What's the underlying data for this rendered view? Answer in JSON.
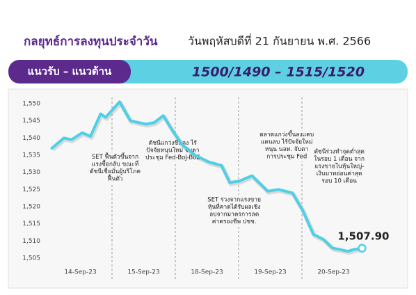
{
  "header": {
    "title": "กลยุทธ์การลงทุนประจำวัน",
    "date": "วันพฤหัสบดีที่ 21 กันยายน พ.ศ. 2566",
    "band_label": "แนวรับ – แนวต้าน",
    "levels": "1500/1490 – 1515/1520"
  },
  "chart_data": {
    "type": "line",
    "color": "#4dd0e6",
    "x": [
      0.5,
      2.4,
      3.6,
      5.3,
      6.6,
      8.2,
      9,
      11.2,
      12.9,
      15.4,
      16.7,
      18.1,
      19.6,
      21.1,
      23.1,
      25.3,
      27.3,
      28.6,
      30.2,
      32.1,
      34.6,
      36.3,
      38.5,
      40.1,
      41.8,
      43.4,
      44.8,
      47.3,
      48.1,
      49.5
    ],
    "values": [
      1537,
      1540,
      1539.5,
      1541.5,
      1540.5,
      1547,
      1546,
      1550.5,
      1545,
      1544,
      1544.5,
      1546.5,
      1542,
      1538,
      1535,
      1533,
      1532,
      1527,
      1527.5,
      1529,
      1524.5,
      1525,
      1524,
      1519,
      1512,
      1510.5,
      1508,
      1507,
      1507.5,
      1507.9
    ],
    "value_labels": [
      null,
      null,
      null,
      null,
      null,
      null,
      null,
      null,
      null,
      null,
      null,
      null,
      null,
      null,
      null,
      null,
      null,
      null,
      null,
      null,
      null,
      null,
      null,
      null,
      null,
      null,
      null,
      null,
      null,
      "1,507.90"
    ],
    "xlim": [
      0,
      50
    ],
    "xticks": [
      {
        "value": 5,
        "label": "14-Sep-23"
      },
      {
        "value": 15,
        "label": "15-Sep-23"
      },
      {
        "value": 25,
        "label": "18-Sep-23"
      },
      {
        "value": 35,
        "label": "19-Sep-23"
      },
      {
        "value": 45,
        "label": "20-Sep-23"
      }
    ],
    "xgrid": [
      10,
      20,
      30,
      40
    ],
    "ylim": [
      1503,
      1552
    ],
    "yticks": [
      {
        "value": 1505,
        "label": "1,505"
      },
      {
        "value": 1510,
        "label": "1,510"
      },
      {
        "value": 1515,
        "label": "1,515"
      },
      {
        "value": 1520,
        "label": "1,520"
      },
      {
        "value": 1525,
        "label": "1,525"
      },
      {
        "value": 1530,
        "label": "1,530"
      },
      {
        "value": 1535,
        "label": "1,535"
      },
      {
        "value": 1540,
        "label": "1,540"
      },
      {
        "value": 1545,
        "label": "1,545"
      },
      {
        "value": 1550,
        "label": "1,550"
      }
    ],
    "annotations": [
      {
        "x": 10.5,
        "y": 1534.5,
        "lines": [
          "SET ฟื้นตัวขึ้นจาก",
          "แรงซื้อกลับ ขณะที่",
          "ดัชนีเชื่อมั่นผู้บริโภค",
          "ฟื้นตัว"
        ]
      },
      {
        "x": 19.6,
        "y": 1538.5,
        "lines": [
          "ดัชนีแกว่งขึ้นลง ไร้",
          "ปัจจัยหนุนใหม่ จับตา",
          "ประชุม Fed-BoJ-BoE"
        ]
      },
      {
        "x": 29.3,
        "y": 1522,
        "lines": [
          "SET ร่วงจากแรงขาย",
          "หุ้นที่คาดได้รับผลเชิง",
          "ลบจากมาตรการลด",
          "ค่าครองชีพ ปชช."
        ]
      },
      {
        "x": 37.6,
        "y": 1541,
        "lines": [
          "ตลาดแกว่งขึ้นลงแคบ",
          "แดนลบ ไร้ปัจจัยใหม่",
          "หนุน นลท. จับตา",
          "การประชุม Fed"
        ]
      },
      {
        "x": 45.9,
        "y": 1536,
        "lines": [
          "ดัชนีร่วงทำจุดต่ำสุด",
          "ในรอบ 1 เดือน จาก",
          "แรงขายในหุ้นใหญ่-",
          "เงินบาทอ่อนค่าสุด",
          "รอบ 10 เดือน"
        ]
      }
    ]
  }
}
